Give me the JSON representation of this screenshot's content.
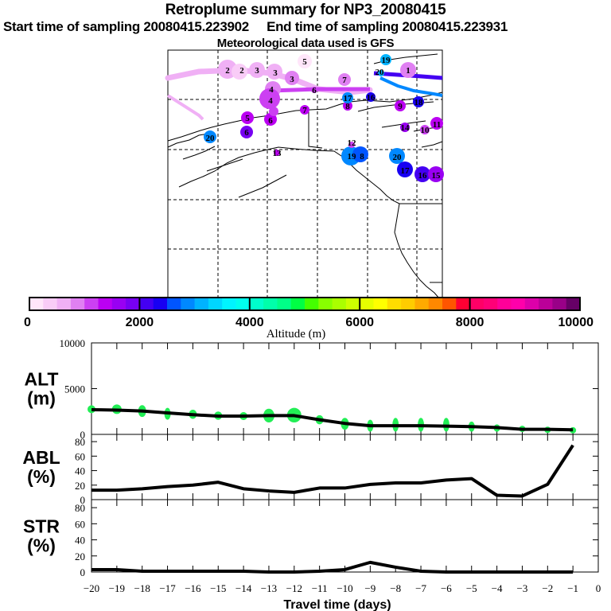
{
  "header": {
    "title": "Retroplume summary for NP3_20080415",
    "start_label": "Start time of sampling 20080415.223902",
    "end_label": "End time of sampling 20080415.223931",
    "met_label": "Meteorological data used is GFS"
  },
  "map": {
    "description": "Retroplume trajectory map over Alaska / NW North America with numbered markers (days back) colored by altitude",
    "markers": [
      {
        "label": "2",
        "alt": 700
      },
      {
        "label": "2",
        "alt": 800
      },
      {
        "label": "3",
        "alt": 900
      },
      {
        "label": "3",
        "alt": 1100
      },
      {
        "label": "4",
        "alt": 1300
      },
      {
        "label": "4",
        "alt": 1600
      },
      {
        "label": "5",
        "alt": 300
      },
      {
        "label": "5",
        "alt": 1700
      },
      {
        "label": "6",
        "alt": 1200
      },
      {
        "label": "6",
        "alt": 2100
      },
      {
        "label": "7",
        "alt": 1100
      },
      {
        "label": "7",
        "alt": 1700
      },
      {
        "label": "8",
        "alt": 1500
      },
      {
        "label": "8",
        "alt": 2900
      },
      {
        "label": "9",
        "alt": 1300
      },
      {
        "label": "12",
        "alt": 1700
      },
      {
        "label": "13",
        "alt": 1700
      },
      {
        "label": "14",
        "alt": 1800
      },
      {
        "label": "15",
        "alt": 1800
      },
      {
        "label": "16",
        "alt": 2100
      },
      {
        "label": "17",
        "alt": 2400
      },
      {
        "label": "17",
        "alt": 3100
      },
      {
        "label": "19",
        "alt": 3100
      },
      {
        "label": "20",
        "alt": 3100
      },
      {
        "label": "10",
        "alt": 1400
      },
      {
        "label": "11",
        "alt": 1600
      },
      {
        "label": "18",
        "alt": 3100
      }
    ]
  },
  "colorbar": {
    "label": "Altitude (m)",
    "ticks": [
      "0",
      "2000",
      "4000",
      "6000",
      "8000",
      "10000"
    ],
    "range": [
      0,
      10000
    ],
    "colors": [
      "#ffe6fa",
      "#f9ccf7",
      "#f0b0f5",
      "#e080f2",
      "#cc40f2",
      "#bb00f2",
      "#9900f2",
      "#7700f2",
      "#4400f2",
      "#1800f2",
      "#0055ff",
      "#0088ff",
      "#00b3ff",
      "#00d6ff",
      "#00f4ff",
      "#00ffee",
      "#00ffcc",
      "#00ffaa",
      "#00ff88",
      "#00ff44",
      "#44ff00",
      "#88ff00",
      "#aaff00",
      "#ccff00",
      "#e6ff00",
      "#ffff00",
      "#ffdd00",
      "#ffcc00",
      "#ffaa00",
      "#ff8800",
      "#ff5500",
      "#ff0033",
      "#ff0066",
      "#ff0077",
      "#ff0099",
      "#ff00aa",
      "#dd00aa",
      "#bb0099",
      "#990088",
      "#660066"
    ]
  },
  "chart_data": [
    {
      "type": "line",
      "name": "ALT",
      "ylabel": "ALT\n(m)",
      "ylabel_lines": [
        "ALT",
        "(m)"
      ],
      "x": [
        -20,
        -19,
        -18,
        -17,
        -16,
        -15,
        -14,
        -13,
        -12,
        -11,
        -10,
        -9,
        -8,
        -7,
        -6,
        -5,
        -4,
        -3,
        -2,
        -1
      ],
      "values": [
        2700,
        2650,
        2550,
        2350,
        2150,
        2000,
        2000,
        2050,
        2050,
        1600,
        1200,
        950,
        950,
        950,
        900,
        850,
        750,
        550,
        550,
        500
      ],
      "spread_scatter_note": "green dots show particle altitude spread per day",
      "ylim": [
        0,
        10000
      ],
      "yticks": [
        "0",
        "5000",
        "10000"
      ]
    },
    {
      "type": "line",
      "name": "ABL",
      "ylabel_lines": [
        "ABL",
        "(%)"
      ],
      "x": [
        -20,
        -19,
        -18,
        -17,
        -16,
        -15,
        -14,
        -13,
        -12,
        -11,
        -10,
        -9,
        -8,
        -7,
        -6,
        -5,
        -4,
        -3,
        -2,
        -1
      ],
      "values": [
        13,
        13,
        15,
        18,
        20,
        24,
        15,
        12,
        10,
        16,
        16,
        21,
        23,
        23,
        27,
        29,
        6,
        5,
        21,
        75
      ],
      "ylim": [
        0,
        90
      ],
      "yticks": [
        "0",
        "20",
        "40",
        "60",
        "80"
      ]
    },
    {
      "type": "line",
      "name": "STR",
      "ylabel_lines": [
        "STR",
        "(%)"
      ],
      "x": [
        -20,
        -19,
        -18,
        -17,
        -16,
        -15,
        -14,
        -13,
        -12,
        -11,
        -10,
        -9,
        -8,
        -7,
        -6,
        -5,
        -4,
        -3,
        -2,
        -1
      ],
      "values": [
        3,
        3,
        1,
        1,
        1,
        1,
        1,
        0,
        0,
        1,
        3,
        12,
        6,
        1,
        0,
        0,
        0,
        0,
        0,
        0
      ],
      "ylim": [
        0,
        90
      ],
      "yticks": [
        "0",
        "20",
        "40",
        "60",
        "80"
      ]
    }
  ],
  "xaxis": {
    "label": "Travel time (days)",
    "ticks": [
      "-20",
      "-19",
      "-18",
      "-17",
      "-16",
      "-15",
      "-14",
      "-13",
      "-12",
      "-11",
      "-10",
      "-9",
      "-8",
      "-7",
      "-6",
      "-5",
      "-4",
      "-3",
      "-2",
      "-1",
      "0"
    ]
  },
  "alt_spread": [
    {
      "x": -20,
      "sizes": [
        3,
        5
      ],
      "spread": [
        2400,
        3100
      ]
    },
    {
      "x": -19,
      "sizes": [
        4,
        6
      ],
      "spread": [
        2300,
        3200
      ]
    },
    {
      "x": -18,
      "sizes": [
        4,
        5
      ],
      "spread": [
        1900,
        3200
      ]
    },
    {
      "x": -17,
      "sizes": [
        3,
        4
      ],
      "spread": [
        1600,
        2900
      ]
    },
    {
      "x": -16,
      "sizes": [
        4,
        5
      ],
      "spread": [
        1700,
        2700
      ]
    },
    {
      "x": -15,
      "sizes": [
        4,
        5
      ],
      "spread": [
        1600,
        2500
      ]
    },
    {
      "x": -14,
      "sizes": [
        4,
        5
      ],
      "spread": [
        1600,
        2400
      ]
    },
    {
      "x": -13,
      "sizes": [
        6,
        7
      ],
      "spread": [
        1300,
        2800
      ]
    },
    {
      "x": -12,
      "sizes": [
        7,
        9
      ],
      "spread": [
        1300,
        2900
      ]
    },
    {
      "x": -11,
      "sizes": [
        4,
        5
      ],
      "spread": [
        1100,
        2100
      ]
    },
    {
      "x": -10,
      "sizes": [
        3,
        5
      ],
      "spread": [
        500,
        1800
      ]
    },
    {
      "x": -9,
      "sizes": [
        3,
        4
      ],
      "spread": [
        300,
        1600
      ]
    },
    {
      "x": -8,
      "sizes": [
        3,
        4
      ],
      "spread": [
        300,
        1800
      ]
    },
    {
      "x": -7,
      "sizes": [
        3,
        4
      ],
      "spread": [
        300,
        1800
      ]
    },
    {
      "x": -6,
      "sizes": [
        3,
        4
      ],
      "spread": [
        300,
        1800
      ]
    },
    {
      "x": -5,
      "sizes": [
        3,
        4
      ],
      "spread": [
        300,
        1400
      ]
    },
    {
      "x": -4,
      "sizes": [
        3,
        4
      ],
      "spread": [
        300,
        1100
      ]
    },
    {
      "x": -3,
      "sizes": [
        3,
        4
      ],
      "spread": [
        300,
        900
      ]
    },
    {
      "x": -2,
      "sizes": [
        3,
        4
      ],
      "spread": [
        300,
        700
      ]
    },
    {
      "x": -1,
      "sizes": [
        3,
        4
      ],
      "spread": [
        300,
        600
      ]
    }
  ]
}
